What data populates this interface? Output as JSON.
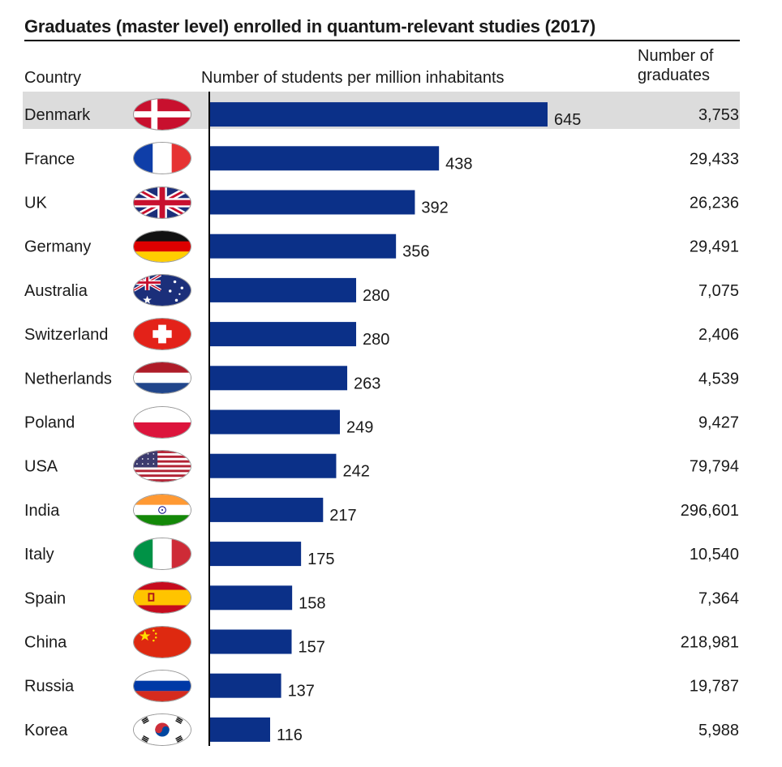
{
  "title": "Graduates (master level) enrolled in quantum-relevant studies (2017)",
  "headers": {
    "country": "Country",
    "bars": "Number of students per million inhabitants",
    "graduates_line1": "Number of",
    "graduates_line2": "graduates"
  },
  "colors": {
    "bar": "#0b3088",
    "highlight": "#dcdcdc",
    "axis": "#000000",
    "text": "#1a1a1a"
  },
  "highlighted_country": "Denmark",
  "chart_data": {
    "type": "bar",
    "orientation": "horizontal",
    "title": "Graduates (master level) enrolled in quantum-relevant studies (2017)",
    "xlabel": "Number of students per million inhabitants",
    "ylabel": "Country",
    "xlim": [
      0,
      700
    ],
    "grid": false,
    "categories": [
      "Denmark",
      "France",
      "UK",
      "Germany",
      "Australia",
      "Switzerland",
      "Netherlands",
      "Poland",
      "USA",
      "India",
      "Italy",
      "Spain",
      "China",
      "Russia",
      "Korea"
    ],
    "values": [
      645,
      438,
      392,
      356,
      280,
      280,
      263,
      249,
      242,
      217,
      175,
      158,
      157,
      137,
      116
    ],
    "value_labels": [
      "645",
      "438",
      "392",
      "356",
      "280",
      "280",
      "263",
      "249",
      "242",
      "217",
      "175",
      "158",
      "157",
      "137",
      "116"
    ],
    "graduates": [
      "3,753",
      "29,433",
      "26,236",
      "29,491",
      "7,075",
      "2,406",
      "4,539",
      "9,427",
      "79,794",
      "296,601",
      "10,540",
      "7,364",
      "218,981",
      "19,787",
      "5,988"
    ],
    "flag_icons": [
      "flag-denmark-icon",
      "flag-france-icon",
      "flag-uk-icon",
      "flag-germany-icon",
      "flag-australia-icon",
      "flag-switzerland-icon",
      "flag-netherlands-icon",
      "flag-poland-icon",
      "flag-usa-icon",
      "flag-india-icon",
      "flag-italy-icon",
      "flag-spain-icon",
      "flag-china-icon",
      "flag-russia-icon",
      "flag-korea-icon"
    ]
  }
}
